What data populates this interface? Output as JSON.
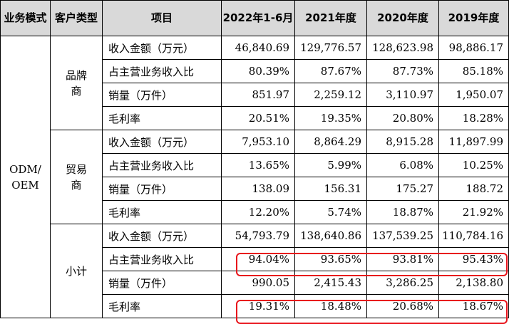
{
  "header": {
    "business_mode": "业务模式",
    "customer_type": "客户类型",
    "item": "项目",
    "years": [
      "2022年1-6月",
      "2021年度",
      "2020年度",
      "2019年度"
    ]
  },
  "business_mode_value": "ODM/\nOEM",
  "groups": [
    {
      "customer_type": "品牌商",
      "rows": [
        {
          "item": "收入金额（万元）",
          "values": [
            "46,840.69",
            "129,776.57",
            "128,623.98",
            "98,886.17"
          ]
        },
        {
          "item": "占主营业务收入比",
          "values": [
            "80.39%",
            "87.67%",
            "87.73%",
            "85.18%"
          ]
        },
        {
          "item": "销量（万件）",
          "values": [
            "851.97",
            "2,259.12",
            "3,110.97",
            "1,950.07"
          ]
        },
        {
          "item": "毛利率",
          "values": [
            "20.51%",
            "19.35%",
            "20.80%",
            "18.28%"
          ]
        }
      ]
    },
    {
      "customer_type": "贸易商",
      "rows": [
        {
          "item": "收入金额（万元）",
          "values": [
            "7,953.10",
            "8,864.29",
            "8,915.28",
            "11,897.99"
          ]
        },
        {
          "item": "占主营业务收入比",
          "values": [
            "13.65%",
            "5.99%",
            "6.08%",
            "10.25%"
          ]
        },
        {
          "item": "销量（万件）",
          "values": [
            "138.09",
            "156.31",
            "175.27",
            "188.72"
          ]
        },
        {
          "item": "毛利率",
          "values": [
            "12.20%",
            "5.74%",
            "18.87%",
            "21.92%"
          ]
        }
      ]
    },
    {
      "customer_type": "小计",
      "rows": [
        {
          "item": "收入金额（万元）",
          "values": [
            "54,793.79",
            "138,640.86",
            "137,539.25",
            "110,784.16"
          ]
        },
        {
          "item": "占主营业务收入比",
          "values": [
            "94.04%",
            "93.65%",
            "93.81%",
            "95.43%"
          ]
        },
        {
          "item": "销量（万件）",
          "values": [
            "990.05",
            "2,415.43",
            "3,286.25",
            "2,138.80"
          ]
        },
        {
          "item": "毛利率",
          "values": [
            "19.31%",
            "18.48%",
            "20.68%",
            "18.67%"
          ]
        }
      ]
    }
  ],
  "highlight_color": "#e8141b",
  "header_bg": "#d9d9d9"
}
